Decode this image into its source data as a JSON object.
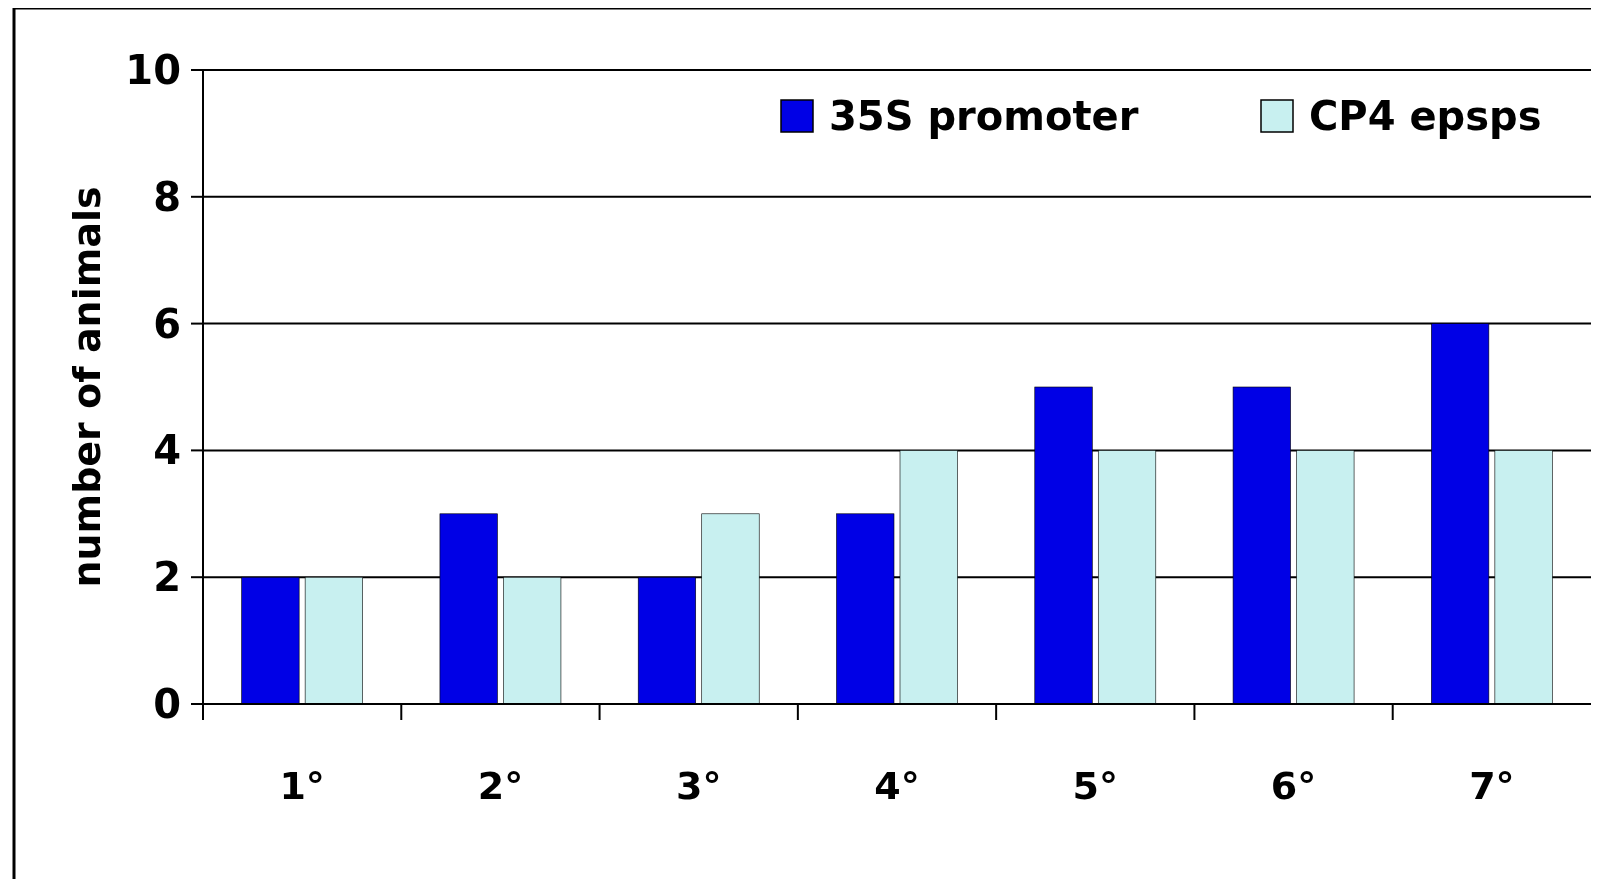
{
  "chart_data": {
    "type": "bar",
    "ylabel": "number of animals",
    "categories": [
      "1°",
      "2°",
      "3°",
      "4°",
      "5°",
      "6°",
      "7°"
    ],
    "series": [
      {
        "name": "35S promoter",
        "color": "#0000e6",
        "values": [
          2,
          3,
          2,
          3,
          5,
          5,
          6
        ]
      },
      {
        "name": "CP4 epsps",
        "color": "#c8f0f0",
        "values": [
          2,
          2,
          3,
          4,
          4,
          4,
          4
        ]
      }
    ],
    "ylim": [
      0,
      10
    ],
    "yticks": [
      0,
      2,
      4,
      6,
      8,
      10
    ],
    "grid": "y",
    "legend": "top right"
  }
}
